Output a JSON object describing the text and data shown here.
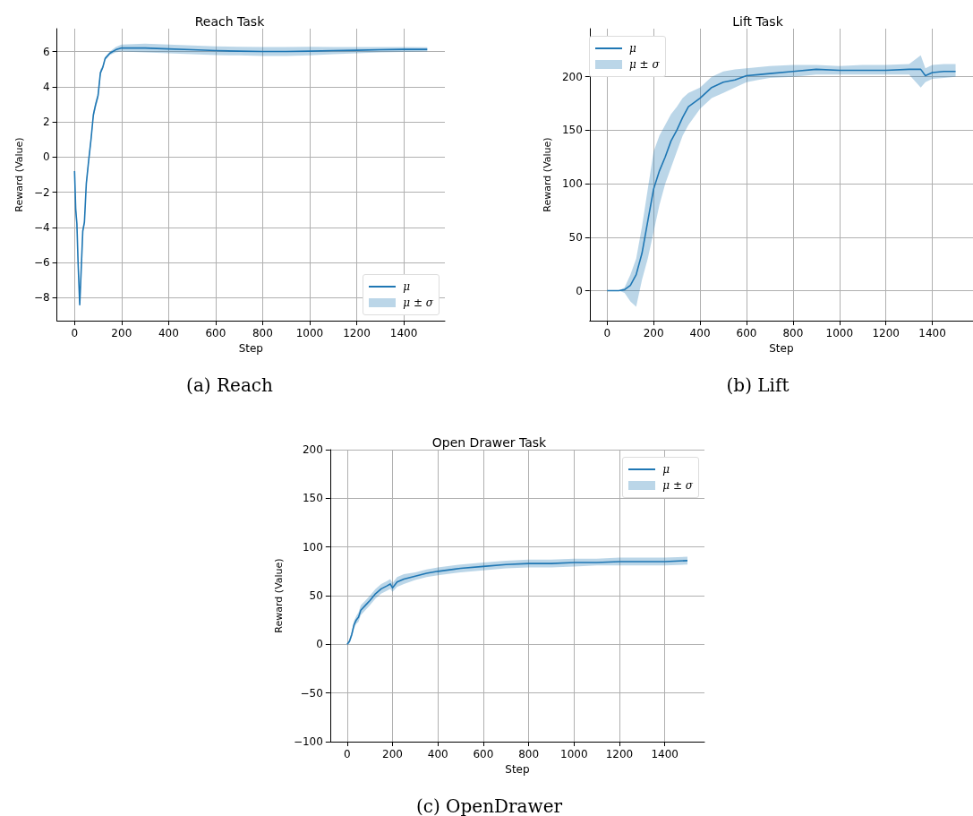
{
  "chart_data": [
    {
      "type": "line",
      "title": "Reach Task",
      "xlabel": "Step",
      "ylabel": "Reward (Value)",
      "legend_title": "μ ± σ",
      "annotations": [
        "(a) Reach"
      ],
      "xlim": [
        -75,
        1575
      ],
      "xticks": [
        0,
        200,
        400,
        600,
        800,
        1000,
        1200,
        1400
      ],
      "ylim": [
        -9.3,
        7.3
      ],
      "yticks": [
        -8,
        -6,
        -4,
        -2,
        0,
        2,
        4,
        6
      ],
      "grid": true,
      "legend": "lower right",
      "marker": "none",
      "line_style": "solid",
      "x": [
        0,
        5,
        10,
        15,
        22,
        28,
        35,
        42,
        50,
        60,
        70,
        80,
        90,
        100,
        110,
        120,
        130,
        150,
        175,
        200,
        300,
        400,
        500,
        600,
        700,
        800,
        900,
        1000,
        1100,
        1200,
        1300,
        1400,
        1500
      ],
      "series": [
        {
          "name": "μ",
          "color": "#1f77b4",
          "values": [
            -0.8,
            -3,
            -3.8,
            -6,
            -8.4,
            -6.5,
            -4.2,
            -3.7,
            -1.5,
            -0.2,
            1,
            2.4,
            3,
            3.5,
            4.8,
            5.1,
            5.6,
            5.9,
            6.1,
            6.2,
            6.2,
            6.15,
            6.1,
            6.05,
            6.02,
            6,
            6,
            6.02,
            6.05,
            6.07,
            6.1,
            6.12,
            6.12
          ],
          "lower": [
            -0.9,
            -3.3,
            -4.3,
            -6.3,
            -8.5,
            -6.8,
            -4.4,
            -3.9,
            -1.7,
            -0.4,
            0.8,
            2.2,
            2.8,
            3.3,
            4.6,
            5,
            5.5,
            5.8,
            5.95,
            6,
            5.95,
            5.9,
            5.85,
            5.8,
            5.78,
            5.75,
            5.75,
            5.78,
            5.85,
            5.9,
            5.95,
            5.98,
            6
          ],
          "upper": [
            -0.7,
            -2.7,
            -3.3,
            -5.7,
            -8.2,
            -6.2,
            -4,
            -3.5,
            -1.3,
            0,
            1.2,
            2.6,
            3.2,
            3.7,
            5,
            5.2,
            5.7,
            6,
            6.25,
            6.4,
            6.45,
            6.4,
            6.35,
            6.3,
            6.27,
            6.25,
            6.25,
            6.27,
            6.25,
            6.25,
            6.25,
            6.26,
            6.24
          ]
        }
      ]
    },
    {
      "type": "line",
      "title": "Lift Task",
      "xlabel": "Step",
      "ylabel": "Reward (Value)",
      "legend_title": "μ ± σ",
      "annotations": [
        "(b) Lift"
      ],
      "xlim": [
        -75,
        1575
      ],
      "xticks": [
        0,
        200,
        400,
        600,
        800,
        1000,
        1200,
        1400
      ],
      "ylim": [
        -28,
        245
      ],
      "yticks": [
        0,
        50,
        100,
        150,
        200
      ],
      "grid": true,
      "legend": "upper left",
      "marker": "none",
      "line_style": "solid",
      "x": [
        0,
        50,
        75,
        100,
        125,
        150,
        175,
        200,
        225,
        250,
        275,
        300,
        325,
        350,
        400,
        450,
        500,
        550,
        600,
        650,
        700,
        800,
        900,
        1000,
        1100,
        1200,
        1300,
        1350,
        1370,
        1400,
        1450,
        1500
      ],
      "series": [
        {
          "name": "μ",
          "color": "#1f77b4",
          "values": [
            0,
            0,
            1,
            5,
            15,
            35,
            65,
            95,
            112,
            125,
            140,
            150,
            162,
            172,
            180,
            190,
            195,
            197,
            201,
            202,
            203,
            205,
            207,
            206,
            206,
            206,
            207,
            207,
            201,
            204,
            205,
            205
          ],
          "lower": [
            0,
            0,
            -2,
            -10,
            -15,
            10,
            30,
            55,
            80,
            100,
            115,
            130,
            145,
            155,
            170,
            180,
            185,
            190,
            195,
            197,
            199,
            200,
            202,
            202,
            202,
            202,
            202,
            190,
            195,
            198,
            199,
            200
          ],
          "upper": [
            0,
            0,
            3,
            15,
            30,
            60,
            95,
            130,
            145,
            155,
            165,
            172,
            180,
            185,
            190,
            200,
            205,
            207,
            208,
            209,
            210,
            211,
            211,
            210,
            211,
            211,
            212,
            220,
            208,
            211,
            212,
            212
          ]
        }
      ]
    },
    {
      "type": "line",
      "title": "Open Drawer Task",
      "xlabel": "Step",
      "ylabel": "Reward (Value)",
      "legend_title": "μ ± σ",
      "annotations": [
        "(c) OpenDrawer"
      ],
      "xlim": [
        -75,
        1575
      ],
      "xticks": [
        0,
        200,
        400,
        600,
        800,
        1000,
        1200,
        1400
      ],
      "ylim": [
        -100,
        200
      ],
      "yticks": [
        -100,
        -50,
        0,
        50,
        100,
        150,
        200
      ],
      "grid": true,
      "legend": "upper right",
      "marker": "none",
      "line_style": "solid",
      "x": [
        0,
        10,
        20,
        30,
        40,
        50,
        60,
        80,
        100,
        125,
        150,
        175,
        190,
        200,
        220,
        250,
        300,
        350,
        400,
        500,
        600,
        700,
        800,
        900,
        1000,
        1100,
        1200,
        1300,
        1400,
        1500
      ],
      "series": [
        {
          "name": "μ",
          "color": "#1f77b4",
          "values": [
            0,
            3,
            10,
            20,
            25,
            28,
            35,
            40,
            45,
            52,
            57,
            60,
            62,
            58,
            64,
            67,
            70,
            73,
            75,
            78,
            80,
            82,
            83,
            83,
            84,
            84,
            85,
            85,
            85,
            86
          ],
          "lower": [
            -1,
            1,
            7,
            16,
            21,
            23,
            30,
            35,
            40,
            47,
            52,
            55,
            57,
            54,
            59,
            62,
            66,
            69,
            71,
            74,
            76,
            78,
            79,
            79,
            80,
            81,
            81,
            81,
            81,
            82
          ],
          "upper": [
            1,
            5,
            13,
            24,
            29,
            33,
            40,
            45,
            50,
            57,
            62,
            65,
            67,
            63,
            69,
            72,
            74,
            77,
            79,
            82,
            84,
            86,
            87,
            87,
            88,
            88,
            89,
            89,
            89,
            90
          ]
        }
      ]
    }
  ]
}
